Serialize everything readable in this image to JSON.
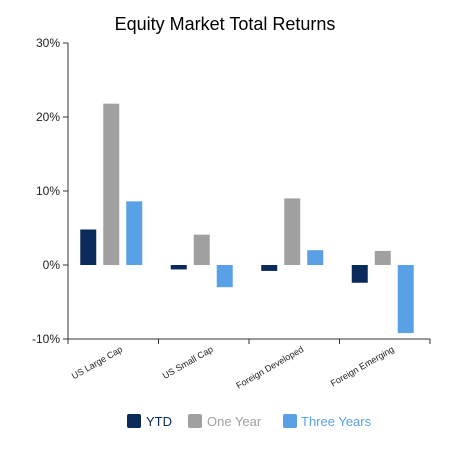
{
  "chart_data": {
    "type": "bar",
    "title": "Equity Market Total Returns",
    "xlabel": "",
    "ylabel": "",
    "categories": [
      "US Large Cap",
      "US Small Cap",
      "Foreign Developed",
      "Foreign Emerging"
    ],
    "series": [
      {
        "name": "YTD",
        "values": [
          4.8,
          -0.6,
          -0.8,
          -2.4
        ],
        "color": "#0a2a5c"
      },
      {
        "name": "One Year",
        "values": [
          21.8,
          4.1,
          9.0,
          1.9
        ],
        "color": "#a0a0a0"
      },
      {
        "name": "Three Years",
        "values": [
          8.6,
          -3.0,
          2.0,
          -9.2
        ],
        "color": "#5aa0e6"
      }
    ],
    "ylim": [
      -10,
      30
    ],
    "yticks": [
      {
        "value": -10,
        "label": "-10%"
      },
      {
        "value": 0,
        "label": "0%"
      },
      {
        "value": 10,
        "label": "10%"
      },
      {
        "value": 20,
        "label": "20%"
      },
      {
        "value": 30,
        "label": "30%"
      }
    ],
    "grid": false,
    "legend_position": "bottom-center"
  }
}
